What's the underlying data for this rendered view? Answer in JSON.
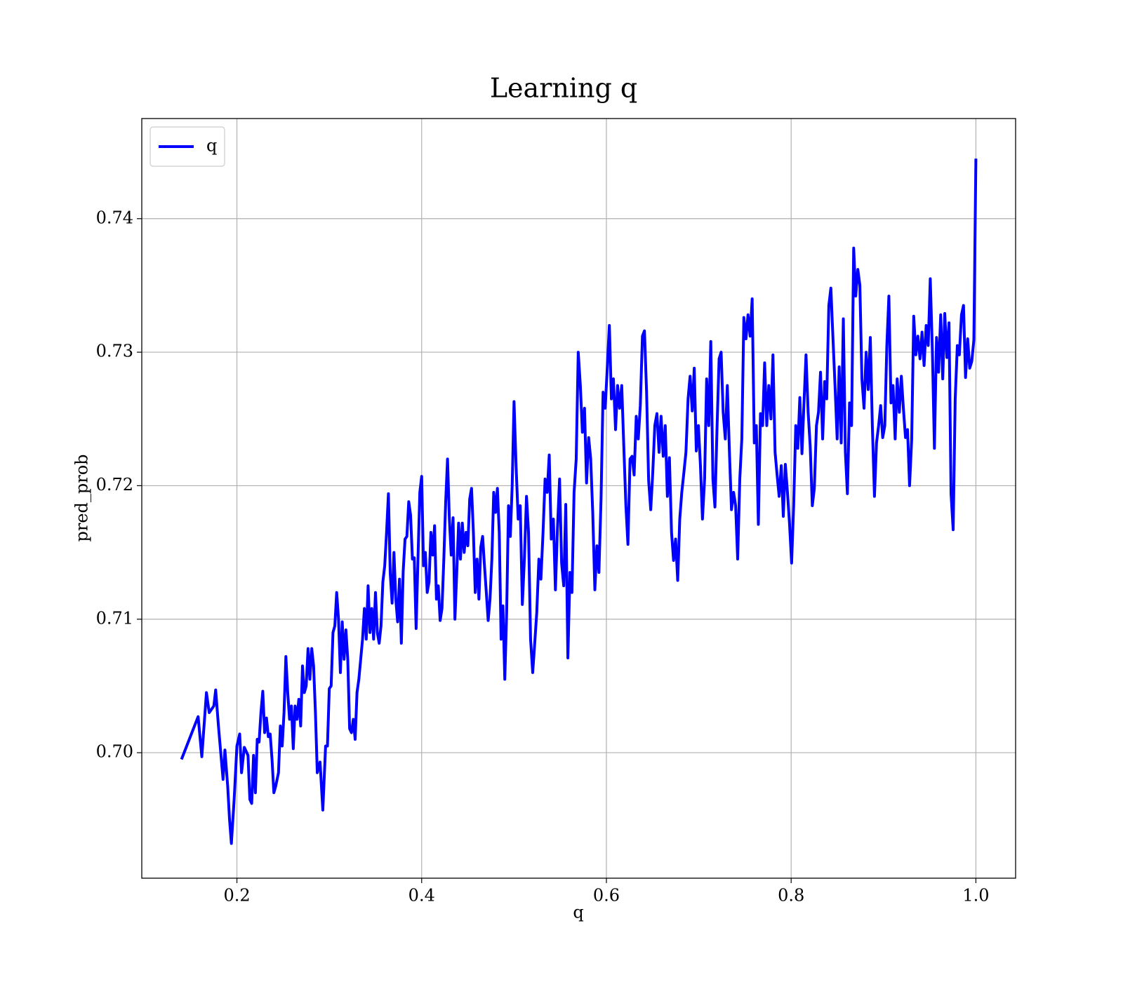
{
  "chart_data": {
    "type": "line",
    "title": "Learning q",
    "xlabel": "q",
    "ylabel": "pred_prob",
    "legend": "upper left",
    "grid": true,
    "xlim": [
      0.097,
      1.043
    ],
    "ylim": [
      0.6906,
      0.7475
    ],
    "xticks": [
      0.2,
      0.4,
      0.6,
      0.8,
      {
        "value": 1,
        "label": "1.0"
      }
    ],
    "yticks": [
      {
        "value": 0.7,
        "label": "0.70"
      },
      0.71,
      0.72,
      0.73,
      0.74
    ],
    "x": [
      0.14,
      0.158,
      0.162,
      0.167,
      0.17,
      0.175,
      0.177,
      0.18,
      0.185,
      0.187,
      0.19,
      0.192,
      0.194,
      0.197,
      0.2,
      0.203,
      0.205,
      0.208,
      0.212,
      0.214,
      0.216,
      0.218,
      0.22,
      0.222,
      0.224,
      0.226,
      0.228,
      0.23,
      0.232,
      0.234,
      0.236,
      0.238,
      0.24,
      0.242,
      0.245,
      0.247,
      0.249,
      0.251,
      0.253,
      0.255,
      0.257,
      0.259,
      0.261,
      0.263,
      0.265,
      0.267,
      0.269,
      0.271,
      0.273,
      0.275,
      0.277,
      0.279,
      0.281,
      0.283,
      0.285,
      0.287,
      0.29,
      0.293,
      0.296,
      0.298,
      0.3,
      0.302,
      0.304,
      0.306,
      0.308,
      0.31,
      0.312,
      0.314,
      0.316,
      0.318,
      0.32,
      0.322,
      0.324,
      0.326,
      0.328,
      0.33,
      0.332,
      0.334,
      0.336,
      0.338,
      0.34,
      0.342,
      0.344,
      0.346,
      0.348,
      0.35,
      0.352,
      0.354,
      0.356,
      0.358,
      0.36,
      0.362,
      0.364,
      0.366,
      0.368,
      0.37,
      0.372,
      0.374,
      0.376,
      0.378,
      0.38,
      0.382,
      0.384,
      0.386,
      0.388,
      0.39,
      0.392,
      0.394,
      0.396,
      0.398,
      0.4,
      0.402,
      0.404,
      0.406,
      0.408,
      0.41,
      0.412,
      0.414,
      0.416,
      0.418,
      0.42,
      0.422,
      0.424,
      0.426,
      0.428,
      0.43,
      0.432,
      0.434,
      0.436,
      0.438,
      0.44,
      0.442,
      0.444,
      0.446,
      0.448,
      0.45,
      0.452,
      0.454,
      0.456,
      0.458,
      0.46,
      0.462,
      0.464,
      0.466,
      0.468,
      0.47,
      0.472,
      0.474,
      0.476,
      0.478,
      0.48,
      0.482,
      0.484,
      0.486,
      0.488,
      0.49,
      0.492,
      0.494,
      0.496,
      0.498,
      0.5,
      0.5022,
      0.5045,
      0.5067,
      0.509,
      0.5112,
      0.5135,
      0.5157,
      0.5179,
      0.5202,
      0.5224,
      0.5246,
      0.5269,
      0.5291,
      0.5314,
      0.5336,
      0.5359,
      0.5381,
      0.5403,
      0.5426,
      0.5448,
      0.547,
      0.5493,
      0.5515,
      0.5538,
      0.556,
      0.5583,
      0.5605,
      0.5627,
      0.565,
      0.5673,
      0.5695,
      0.5718,
      0.574,
      0.5763,
      0.5785,
      0.5808,
      0.583,
      0.5852,
      0.5875,
      0.5897,
      0.5919,
      0.5942,
      0.5964,
      0.5987,
      0.6009,
      0.6032,
      0.6054,
      0.6076,
      0.6099,
      0.6121,
      0.6143,
      0.6166,
      0.6188,
      0.6211,
      0.6233,
      0.6256,
      0.6278,
      0.63,
      0.6323,
      0.6345,
      0.6367,
      0.639,
      0.6412,
      0.6435,
      0.6457,
      0.648,
      0.6502,
      0.6524,
      0.6547,
      0.657,
      0.6592,
      0.6615,
      0.6637,
      0.666,
      0.6682,
      0.6705,
      0.6727,
      0.6749,
      0.6772,
      0.6794,
      0.6816,
      0.6839,
      0.6861,
      0.6884,
      0.6906,
      0.6929,
      0.6951,
      0.6973,
      0.6996,
      0.7018,
      0.704,
      0.7063,
      0.7085,
      0.7108,
      0.713,
      0.7153,
      0.7175,
      0.7197,
      0.722,
      0.7242,
      0.7264,
      0.7287,
      0.7309,
      0.7332,
      0.7354,
      0.7377,
      0.7399,
      0.7421,
      0.7444,
      0.7466,
      0.7488,
      0.7511,
      0.7533,
      0.7556,
      0.7578,
      0.7601,
      0.7623,
      0.7645,
      0.7668,
      0.7691,
      0.7713,
      0.7736,
      0.7758,
      0.7781,
      0.7803,
      0.7826,
      0.7848,
      0.787,
      0.7893,
      0.7915,
      0.7937,
      0.796,
      0.7982,
      0.8005,
      0.8027,
      0.805,
      0.8072,
      0.8094,
      0.8117,
      0.8139,
      0.8161,
      0.8184,
      0.8206,
      0.8229,
      0.8251,
      0.8274,
      0.8296,
      0.8318,
      0.8341,
      0.8363,
      0.8385,
      0.8408,
      0.843,
      0.8453,
      0.8475,
      0.8498,
      0.852,
      0.8542,
      0.8565,
      0.8587,
      0.8609,
      0.8632,
      0.8654,
      0.8677,
      0.8699,
      0.8722,
      0.8744,
      0.8766,
      0.8789,
      0.8812,
      0.8834,
      0.8857,
      0.8879,
      0.8902,
      0.8924,
      0.8947,
      0.8969,
      0.8991,
      0.9014,
      0.9036,
      0.9058,
      0.9081,
      0.9103,
      0.9126,
      0.9148,
      0.9171,
      0.9193,
      0.9215,
      0.9238,
      0.926,
      0.9282,
      0.9305,
      0.9327,
      0.935,
      0.9372,
      0.9395,
      0.9417,
      0.9439,
      0.9462,
      0.9484,
      0.9506,
      0.9529,
      0.9551,
      0.9574,
      0.9596,
      0.9619,
      0.9641,
      0.9663,
      0.9686,
      0.9709,
      0.9731,
      0.9754,
      0.9776,
      0.9799,
      0.9821,
      0.9844,
      0.9866,
      0.9888,
      0.9911,
      0.9933,
      0.9955,
      0.9978,
      1.0
    ],
    "series": [
      {
        "name": "q",
        "color": "#0000ff",
        "values": [
          0.6995,
          0.7027,
          0.6997,
          0.7045,
          0.703,
          0.7035,
          0.7047,
          0.702,
          0.698,
          0.7002,
          0.6975,
          0.695,
          0.6932,
          0.6965,
          0.7005,
          0.7014,
          0.6985,
          0.7004,
          0.6998,
          0.6965,
          0.6962,
          0.6998,
          0.697,
          0.701,
          0.7008,
          0.703,
          0.7046,
          0.7015,
          0.7026,
          0.7012,
          0.7014,
          0.6995,
          0.697,
          0.6975,
          0.6985,
          0.702,
          0.7005,
          0.703,
          0.7072,
          0.7045,
          0.7025,
          0.7035,
          0.7003,
          0.7035,
          0.7025,
          0.704,
          0.702,
          0.7065,
          0.7045,
          0.705,
          0.7078,
          0.7055,
          0.7078,
          0.7065,
          0.703,
          0.6985,
          0.6993,
          0.6957,
          0.7005,
          0.7005,
          0.7048,
          0.705,
          0.709,
          0.7095,
          0.712,
          0.71,
          0.706,
          0.7098,
          0.707,
          0.7092,
          0.707,
          0.7018,
          0.7015,
          0.7025,
          0.701,
          0.7045,
          0.7055,
          0.707,
          0.7085,
          0.7108,
          0.7085,
          0.7125,
          0.709,
          0.7108,
          0.7085,
          0.712,
          0.709,
          0.7082,
          0.7095,
          0.7128,
          0.714,
          0.7165,
          0.7194,
          0.7134,
          0.7112,
          0.715,
          0.7115,
          0.7098,
          0.713,
          0.7082,
          0.7136,
          0.716,
          0.7162,
          0.7188,
          0.7178,
          0.7145,
          0.7146,
          0.7093,
          0.7145,
          0.7195,
          0.7207,
          0.714,
          0.715,
          0.712,
          0.7128,
          0.7165,
          0.7148,
          0.717,
          0.7115,
          0.7125,
          0.7099,
          0.7108,
          0.7145,
          0.7188,
          0.722,
          0.7175,
          0.7148,
          0.7176,
          0.71,
          0.7135,
          0.7172,
          0.7145,
          0.7172,
          0.715,
          0.7165,
          0.7155,
          0.719,
          0.7198,
          0.7165,
          0.712,
          0.7145,
          0.7115,
          0.7154,
          0.7162,
          0.714,
          0.712,
          0.7099,
          0.7115,
          0.7145,
          0.7195,
          0.718,
          0.7198,
          0.7165,
          0.7085,
          0.711,
          0.7055,
          0.7105,
          0.7185,
          0.7162,
          0.72,
          0.7263,
          0.7215,
          0.7175,
          0.7185,
          0.7111,
          0.7145,
          0.7192,
          0.7165,
          0.7085,
          0.706,
          0.7082,
          0.7105,
          0.7145,
          0.713,
          0.7165,
          0.7205,
          0.7195,
          0.7223,
          0.716,
          0.7175,
          0.7122,
          0.7168,
          0.7205,
          0.7142,
          0.7125,
          0.7186,
          0.7071,
          0.7135,
          0.712,
          0.7195,
          0.722,
          0.73,
          0.7275,
          0.724,
          0.7258,
          0.7202,
          0.7236,
          0.722,
          0.718,
          0.7122,
          0.7155,
          0.7135,
          0.719,
          0.727,
          0.7258,
          0.7288,
          0.732,
          0.7265,
          0.728,
          0.7242,
          0.7275,
          0.7258,
          0.7275,
          0.723,
          0.7185,
          0.7156,
          0.722,
          0.7222,
          0.7208,
          0.7252,
          0.7235,
          0.726,
          0.7312,
          0.7316,
          0.727,
          0.7204,
          0.7182,
          0.721,
          0.7245,
          0.7254,
          0.7225,
          0.7252,
          0.7222,
          0.7245,
          0.7192,
          0.7221,
          0.7165,
          0.7144,
          0.716,
          0.7129,
          0.7175,
          0.7195,
          0.721,
          0.7225,
          0.7265,
          0.7282,
          0.7256,
          0.7288,
          0.7226,
          0.7245,
          0.7215,
          0.7175,
          0.7205,
          0.728,
          0.7245,
          0.7308,
          0.7205,
          0.7184,
          0.7242,
          0.7295,
          0.73,
          0.7255,
          0.7235,
          0.7275,
          0.7225,
          0.7182,
          0.7195,
          0.7185,
          0.7145,
          0.7205,
          0.7235,
          0.7326,
          0.731,
          0.7328,
          0.7312,
          0.734,
          0.7232,
          0.7245,
          0.7171,
          0.7254,
          0.7245,
          0.7292,
          0.7245,
          0.7275,
          0.725,
          0.7298,
          0.7225,
          0.7208,
          0.7192,
          0.7215,
          0.7177,
          0.7216,
          0.7195,
          0.7172,
          0.7142,
          0.7185,
          0.7245,
          0.7228,
          0.7266,
          0.7224,
          0.7262,
          0.7298,
          0.7255,
          0.723,
          0.7185,
          0.7198,
          0.7245,
          0.7255,
          0.7285,
          0.7235,
          0.7278,
          0.7265,
          0.7335,
          0.7348,
          0.731,
          0.7275,
          0.7235,
          0.7289,
          0.7232,
          0.7325,
          0.7225,
          0.7194,
          0.7262,
          0.7245,
          0.7378,
          0.7342,
          0.7362,
          0.735,
          0.728,
          0.7258,
          0.73,
          0.7272,
          0.7311,
          0.7245,
          0.7192,
          0.7232,
          0.7245,
          0.726,
          0.7236,
          0.7245,
          0.7305,
          0.7342,
          0.7262,
          0.7275,
          0.7235,
          0.728,
          0.7255,
          0.7282,
          0.7258,
          0.7236,
          0.7242,
          0.72,
          0.7235,
          0.7327,
          0.7298,
          0.7312,
          0.7295,
          0.7315,
          0.729,
          0.732,
          0.7305,
          0.7355,
          0.7301,
          0.7228,
          0.7311,
          0.7285,
          0.7328,
          0.728,
          0.7329,
          0.7296,
          0.7322,
          0.7194,
          0.7167,
          0.7265,
          0.7305,
          0.7298,
          0.7328,
          0.7335,
          0.7281,
          0.731,
          0.7288,
          0.7293,
          0.7309,
          0.7445
        ]
      }
    ]
  }
}
